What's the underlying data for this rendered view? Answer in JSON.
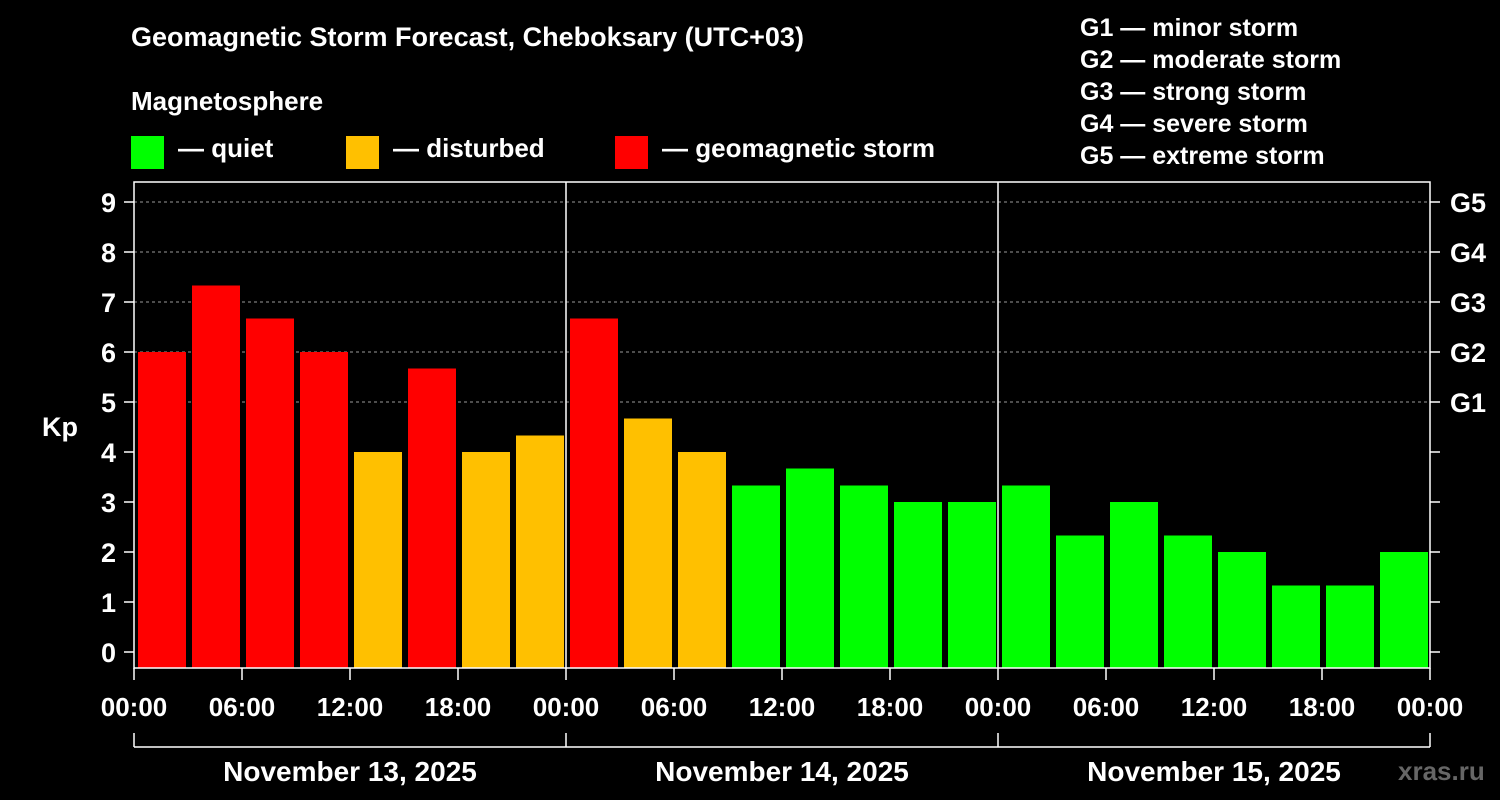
{
  "title": "Geomagnetic Storm Forecast, Cheboksary (UTC+03)",
  "legend": {
    "heading": "Magnetosphere",
    "items": [
      {
        "label": "— quiet",
        "color": "#00ff00"
      },
      {
        "label": "— disturbed",
        "color": "#ffc000"
      },
      {
        "label": "— geomagnetic storm",
        "color": "#ff0000"
      }
    ]
  },
  "storm_scale": [
    "G1 — minor storm",
    "G2 — moderate storm",
    "G3 — strong storm",
    "G4 — severe storm",
    "G5 — extreme storm"
  ],
  "credit": "xras.ru",
  "chart_data": {
    "type": "bar",
    "ylabel": "Kp",
    "ylim": [
      0,
      9.5
    ],
    "yticks": [
      0,
      1,
      2,
      3,
      4,
      5,
      6,
      7,
      8,
      9
    ],
    "right_ticks": [
      {
        "value": 5,
        "label": "G1"
      },
      {
        "value": 6,
        "label": "G2"
      },
      {
        "value": 7,
        "label": "G3"
      },
      {
        "value": 8,
        "label": "G4"
      },
      {
        "value": 9,
        "label": "G5"
      }
    ],
    "xtick_labels": [
      "00:00",
      "06:00",
      "12:00",
      "18:00",
      "00:00",
      "06:00",
      "12:00",
      "18:00",
      "00:00",
      "06:00",
      "12:00",
      "18:00",
      "00:00"
    ],
    "days": [
      "November 13, 2025",
      "November 14, 2025",
      "November 15, 2025"
    ],
    "grid_dashed_at": [
      5,
      6,
      7,
      8,
      9
    ],
    "values": [
      6,
      7.33,
      6.67,
      6,
      4,
      5.67,
      4,
      4.33,
      6.67,
      4.67,
      4,
      3.33,
      3.67,
      3.33,
      3,
      3,
      3.33,
      2.33,
      3,
      2.33,
      2,
      1.33,
      1.33,
      2
    ],
    "colors": {
      "quiet": "#00ff00",
      "disturbed": "#ffc000",
      "storm": "#ff0000"
    }
  }
}
